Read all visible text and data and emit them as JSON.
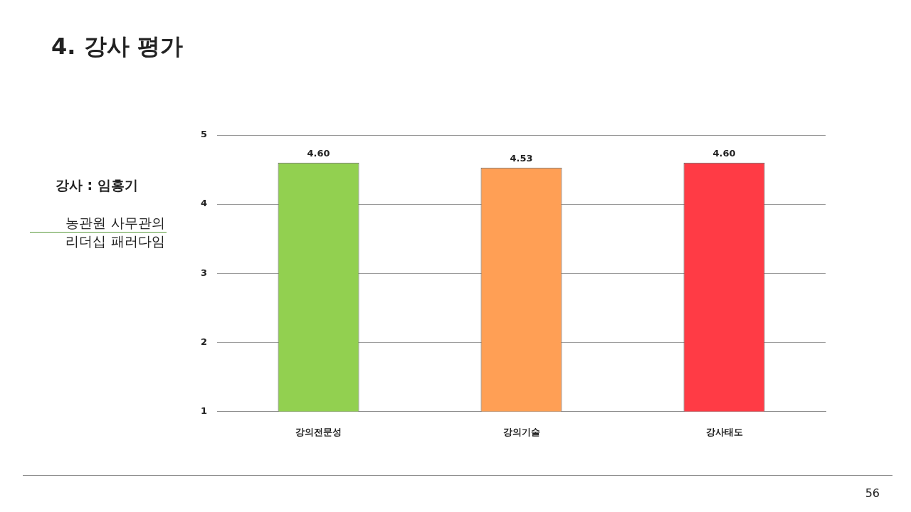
{
  "chart_data": {
    "type": "bar",
    "title": "4. 강사 평가",
    "categories": [
      "강의전문성",
      "강의기술",
      "강사태도"
    ],
    "values": [
      4.6,
      4.53,
      4.6
    ],
    "colors": [
      "#92d050",
      "#ff9f55",
      "#ff3b45"
    ],
    "ylim": [
      1,
      5
    ],
    "yticks": [
      1,
      2,
      3,
      4,
      5
    ],
    "grid": "y",
    "legend": false,
    "value_labels": [
      "4.60",
      "4.53",
      "4.60"
    ],
    "annotations": [
      "강사 : 임홍기",
      "농관원 사무관의 리더십 패러다임",
      "56"
    ]
  }
}
